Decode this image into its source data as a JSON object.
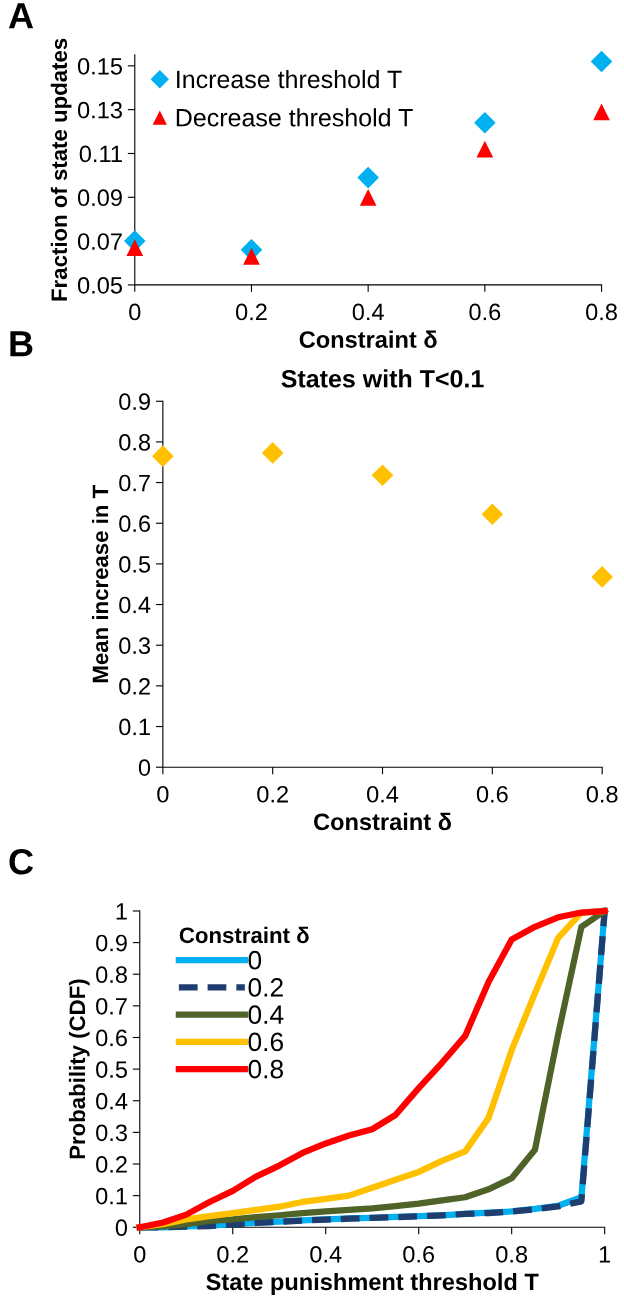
{
  "chart_data": [
    {
      "type": "scatter",
      "annotations": [
        "A"
      ],
      "xlabel": "Constraint δ",
      "ylabel": "Fraction of state updates",
      "x": [
        0,
        0.2,
        0.4,
        0.6,
        0.8
      ],
      "xlim": [
        0,
        0.8
      ],
      "xticks": [
        0,
        0.2,
        0.4,
        0.6,
        0.8
      ],
      "ylim": [
        0.05,
        0.155
      ],
      "yticks": [
        {
          "value": 0.05,
          "label": "0.05"
        },
        {
          "value": 0.07,
          "label": "0.07"
        },
        {
          "value": 0.09,
          "label": "0.09"
        },
        {
          "value": 0.11,
          "label": "0.11"
        },
        {
          "value": 0.13,
          "label": "0.13"
        },
        {
          "value": 0.15,
          "label": "0.15"
        }
      ],
      "legend": "top left",
      "grid": false,
      "series": [
        {
          "name": "Increase threshold T",
          "color": "#00b0f0",
          "marker": "diamond",
          "values": [
            0.07,
            0.066,
            0.099,
            0.124,
            0.152
          ]
        },
        {
          "name": "Decrease threshold T",
          "color": "#ff0000",
          "marker": "triangle",
          "values": [
            0.067,
            0.063,
            0.09,
            0.112,
            0.129
          ]
        }
      ]
    },
    {
      "type": "scatter",
      "annotations": [
        "B"
      ],
      "title": "States with T<0.1",
      "xlabel": "Constraint δ",
      "ylabel": "Mean increase in T",
      "x": [
        0,
        0.2,
        0.4,
        0.6,
        0.8
      ],
      "xlim": [
        0,
        0.8
      ],
      "xticks": [
        0,
        0.2,
        0.4,
        0.6,
        0.8
      ],
      "ylim": [
        0,
        0.9
      ],
      "yticks": [
        0,
        0.1,
        0.2,
        0.3,
        0.4,
        0.5,
        0.6,
        0.7,
        0.8,
        0.9
      ],
      "legend": false,
      "grid": false,
      "series": [
        {
          "color": "#ffc000",
          "marker": "diamond",
          "values": [
            0.765,
            0.773,
            0.718,
            0.622,
            0.468
          ]
        }
      ]
    },
    {
      "type": "line",
      "annotations": [
        "C"
      ],
      "xlabel": "State punishment threshold T",
      "ylabel": "Probability (CDF)",
      "legend_title": "Constraint δ",
      "x": [
        0,
        0.05,
        0.1,
        0.15,
        0.2,
        0.25,
        0.3,
        0.35,
        0.4,
        0.45,
        0.5,
        0.55,
        0.6,
        0.65,
        0.7,
        0.75,
        0.8,
        0.85,
        0.9,
        0.95,
        1
      ],
      "xlim": [
        0,
        1
      ],
      "xticks": [
        0,
        0.2,
        0.4,
        0.6,
        0.8,
        1
      ],
      "ylim": [
        0,
        1
      ],
      "yticks": [
        0,
        0.1,
        0.2,
        0.3,
        0.4,
        0.5,
        0.6,
        0.7,
        0.8,
        0.9,
        1
      ],
      "legend": "top left",
      "grid": false,
      "marker": "none",
      "series": [
        {
          "name": "0",
          "color": "#00b0f0",
          "line_style": "solid",
          "values": [
            0,
            0,
            0.003,
            0.005,
            0.01,
            0.015,
            0.018,
            0.022,
            0.025,
            0.028,
            0.03,
            0.033,
            0.035,
            0.038,
            0.042,
            0.046,
            0.05,
            0.058,
            0.068,
            0.095,
            1.0
          ]
        },
        {
          "name": "0.2",
          "color": "#1f3d6e",
          "line_style": "dashed",
          "values": [
            0,
            0,
            0.002,
            0.004,
            0.009,
            0.014,
            0.017,
            0.021,
            0.024,
            0.027,
            0.03,
            0.032,
            0.035,
            0.038,
            0.042,
            0.045,
            0.05,
            0.057,
            0.066,
            0.082,
            1.0
          ]
        },
        {
          "name": "0.4",
          "color": "#4f6228",
          "line_style": "solid",
          "values": [
            0,
            0.003,
            0.01,
            0.02,
            0.025,
            0.032,
            0.038,
            0.045,
            0.05,
            0.055,
            0.06,
            0.067,
            0.075,
            0.085,
            0.095,
            0.12,
            0.155,
            0.245,
            0.61,
            0.95,
            1.0
          ]
        },
        {
          "name": "0.6",
          "color": "#ffc000",
          "line_style": "solid",
          "values": [
            0,
            0.01,
            0.025,
            0.035,
            0.045,
            0.055,
            0.065,
            0.08,
            0.09,
            0.1,
            0.125,
            0.15,
            0.175,
            0.21,
            0.24,
            0.345,
            0.56,
            0.74,
            0.915,
            0.995,
            1.0
          ]
        },
        {
          "name": "0.8",
          "color": "#ff0000",
          "line_style": "solid",
          "values": [
            0,
            0.015,
            0.04,
            0.08,
            0.115,
            0.16,
            0.195,
            0.235,
            0.265,
            0.29,
            0.31,
            0.355,
            0.44,
            0.52,
            0.605,
            0.775,
            0.91,
            0.95,
            0.98,
            0.995,
            1.0
          ]
        }
      ]
    }
  ]
}
